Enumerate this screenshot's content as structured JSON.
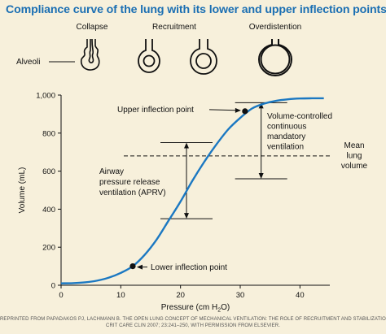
{
  "header": {
    "title": "Compliance curve of the lung with its lower and upper inflection points"
  },
  "alveoli": {
    "row_label": "Alveoli",
    "stages": [
      "Collapse",
      "Recruitment",
      "Overdistention"
    ]
  },
  "colors": {
    "title": "#1b6fb3",
    "curve": "#1b78c2",
    "background": "#f7f0db"
  },
  "chart_data": {
    "type": "line",
    "xlabel_prefix": "Pressure (cm H",
    "xlabel_sub": "2",
    "xlabel_suffix": "O)",
    "ylabel": "Volume (mL)",
    "xlim": [
      0,
      45
    ],
    "ylim": [
      0,
      1000
    ],
    "x_ticks": [
      0,
      10,
      20,
      30,
      40
    ],
    "y_ticks": [
      0,
      200,
      400,
      600,
      800,
      1000
    ],
    "y_tick_labels": [
      "0",
      "200",
      "400",
      "600",
      "800",
      "1,000"
    ],
    "grid": false,
    "series": [
      {
        "x": [
          0,
          2,
          4,
          6,
          8,
          10,
          12,
          14,
          16,
          18,
          20,
          22,
          24,
          26,
          28,
          30,
          32,
          34,
          36,
          38,
          40,
          42,
          44
        ],
        "y": [
          10,
          11,
          15,
          24,
          40,
          65,
          100,
          160,
          240,
          340,
          440,
          550,
          650,
          740,
          820,
          880,
          930,
          955,
          970,
          978,
          982,
          983,
          983
        ]
      }
    ],
    "points": [
      {
        "label": "Lower inflection point",
        "x": 12,
        "y": 100
      },
      {
        "label": "Upper inflection point",
        "x": 30.8,
        "y": 915
      }
    ],
    "annotations": {
      "mean_volume_label": [
        "Mean",
        "lung",
        "volume"
      ],
      "mean_volume_y": 680,
      "aprv_label": [
        "Airway",
        "pressure release",
        "ventilation (APRV)"
      ],
      "aprv_range": {
        "x": 21,
        "y_low": 350,
        "y_high": 750
      },
      "vcmv_label": [
        "Volume-controlled",
        "continuous",
        "mandatory",
        "ventilation"
      ],
      "vcmv_range": {
        "x": 33.5,
        "y_low": 560,
        "y_high": 960
      }
    }
  },
  "credit": [
    "REPRINTED FROM PAPADAKOS PJ, LACHMANN B. THE OPEN LUNG CONCEPT OF MECHANICAL VENTILATION: THE ROLE OF RECRUITMENT AND STABILIZATION.",
    "CRIT CARE CLIN 2007; 23:241–250, WITH PERMISSION FROM ELSEVIER."
  ]
}
